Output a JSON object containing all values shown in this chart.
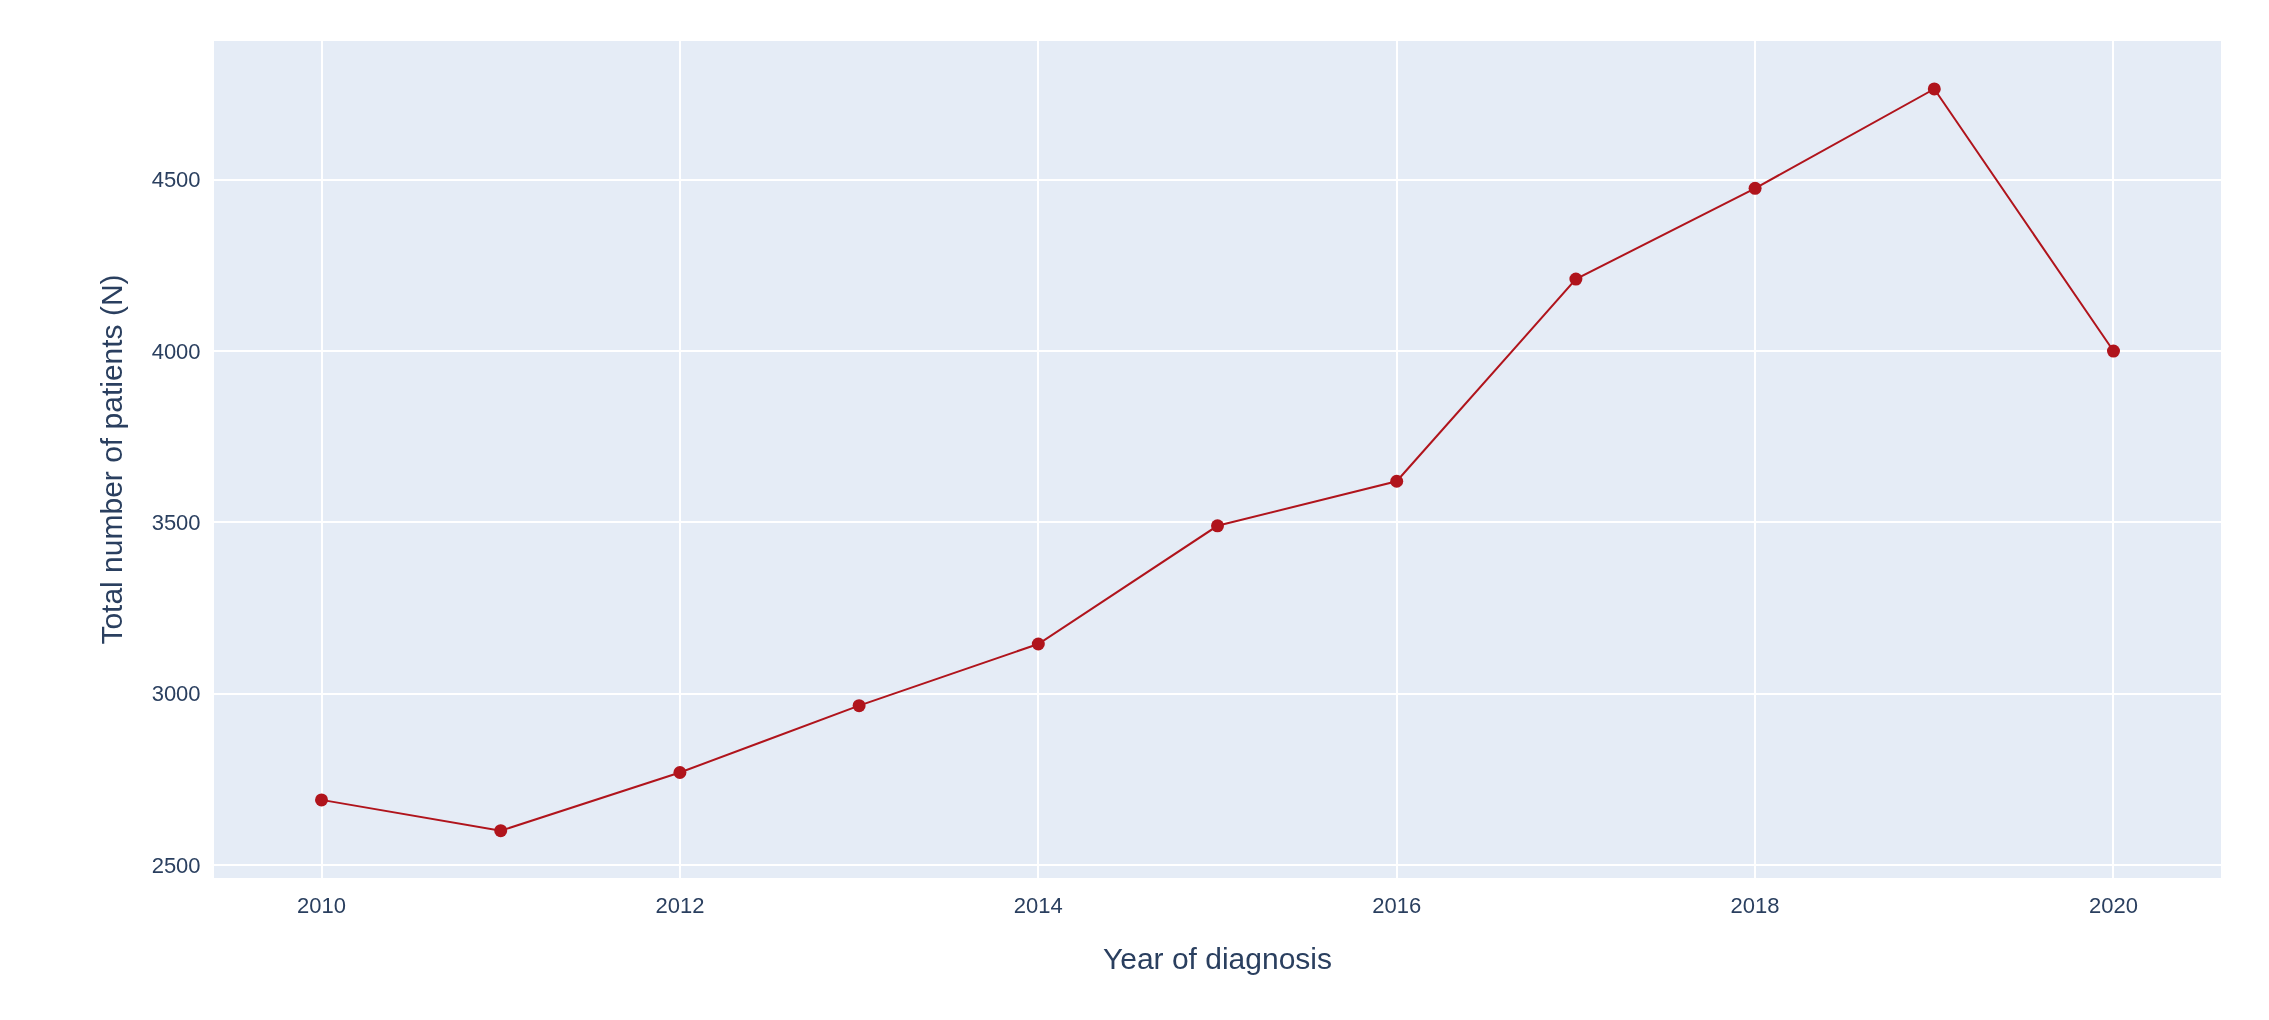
{
  "chart_data": {
    "type": "line",
    "xlabel": "Year of diagnosis",
    "ylabel": "Total number of patients (N)",
    "x": [
      2010,
      2011,
      2012,
      2013,
      2014,
      2015,
      2016,
      2017,
      2018,
      2019,
      2020
    ],
    "series": [
      {
        "color": "#b0141c",
        "values": [
          2690,
          2600,
          2770,
          2965,
          3145,
          3490,
          3620,
          4210,
          4475,
          4765,
          4000
        ]
      }
    ],
    "xlim": [
      2009.4,
      2020.6
    ],
    "xticks": [
      2010,
      2012,
      2014,
      2016,
      2018,
      2020
    ],
    "ylim": [
      2462,
      4905
    ],
    "yticks": [
      2500,
      3000,
      3500,
      4000,
      4500
    ],
    "grid": true,
    "marker": "circle",
    "line_style": "solid"
  }
}
